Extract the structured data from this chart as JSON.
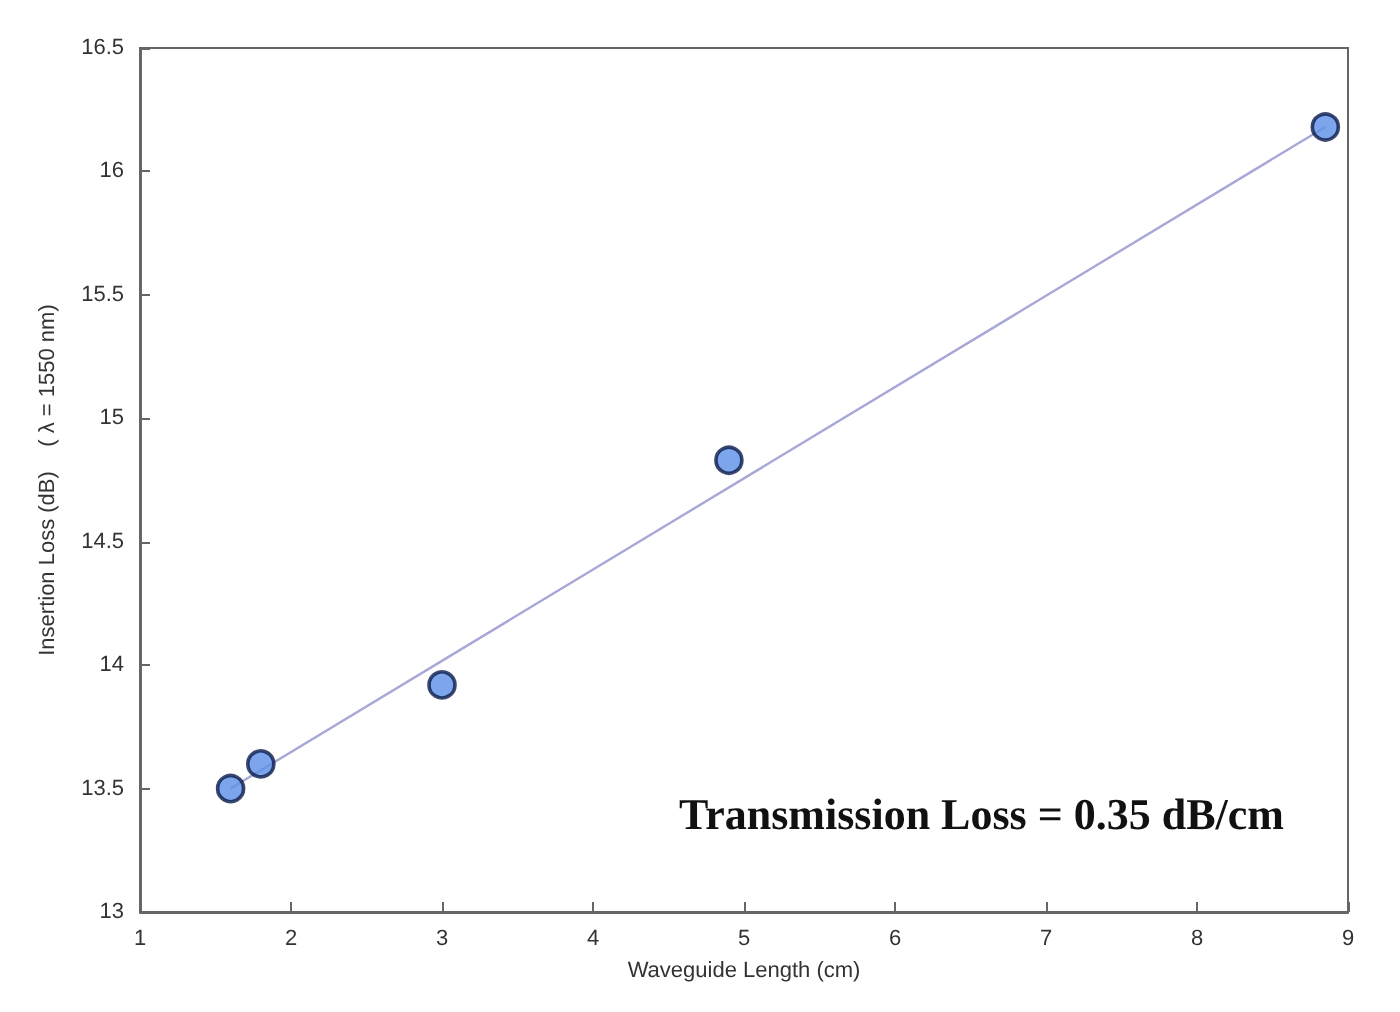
{
  "chart_data": {
    "type": "scatter",
    "xlabel": "Waveguide Length (cm)",
    "ylabel": "Insertion Loss (dB)    ( λ = 1550 nm)",
    "xlim": [
      1,
      9
    ],
    "xticks": [
      1,
      2,
      3,
      4,
      5,
      6,
      7,
      8,
      9
    ],
    "ylim": [
      13,
      16.5
    ],
    "yticks": [
      13,
      13.5,
      14,
      14.5,
      15,
      15.5,
      16,
      16.5
    ],
    "grid": false,
    "marker": "circle",
    "series": [
      {
        "color": "#5b8ee6",
        "x": [
          1.6,
          1.8,
          3,
          4.9,
          8.85
        ],
        "values": [
          13.5,
          13.6,
          13.92,
          14.83,
          16.18
        ]
      },
      {
        "type": "line",
        "color": "#a8a8d8",
        "marker": "none",
        "x": [
          1.6,
          8.85
        ],
        "values": [
          13.5,
          16.18
        ]
      }
    ],
    "annotations": [
      "Transmission Loss = 0.35 dB/cm"
    ]
  }
}
